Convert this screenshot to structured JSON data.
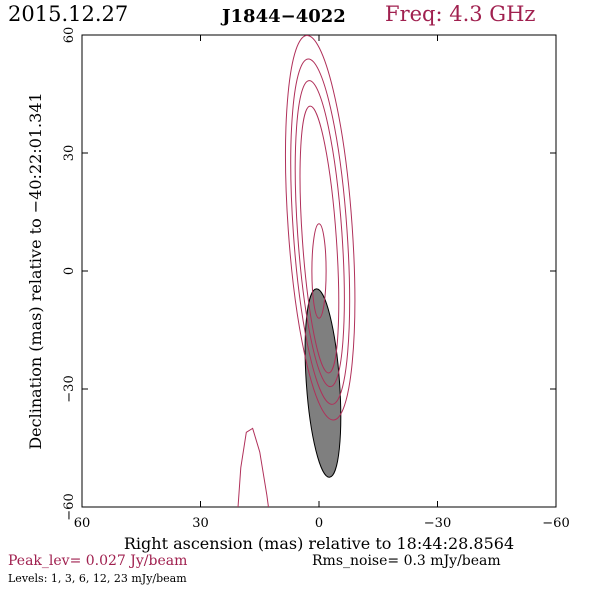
{
  "header": {
    "date": "2015.12.27",
    "source": "J1844−4022",
    "frequency": "Freq: 4.3 GHz"
  },
  "footer": {
    "peak": "Peak_lev=  0.027 Jy/beam",
    "rms": "Rms_noise=  0.3 mJy/beam",
    "levels": "Levels:   1,   3,   6,  12,  23 mJy/beam"
  },
  "colors": {
    "contour": "#b0305a",
    "beam_fill": "#7f7f7f",
    "freq_text": "#a0204f"
  },
  "chart_data": {
    "type": "contour",
    "xlabel": "Right ascension (mas) relative to 18:44:28.8564",
    "ylabel": "Declination (mas) relative to −40:22:01.341",
    "xlim": [
      60,
      -60
    ],
    "ylim": [
      -60,
      60
    ],
    "xticks": [
      60,
      30,
      0,
      -30,
      -60
    ],
    "yticks": [
      -60,
      -30,
      0,
      30,
      60
    ],
    "xtick_labels": [
      "60",
      "30",
      "0",
      "−30",
      "−60"
    ],
    "ytick_labels": [
      "−60",
      "−30",
      "0",
      "30",
      "60"
    ],
    "levels_mJy": [
      1,
      3,
      6,
      12,
      23
    ],
    "main_component": {
      "contours": [
        {
          "level": 1,
          "center": [
            -0.3,
            11.0
          ],
          "semi_major": 49.0,
          "semi_minor": 8.1,
          "pa_deg": -4
        },
        {
          "level": 3,
          "center": [
            -0.3,
            10.0
          ],
          "semi_major": 44.0,
          "semi_minor": 6.8,
          "pa_deg": -4
        },
        {
          "level": 6,
          "center": [
            -0.2,
            9.5
          ],
          "semi_major": 39.0,
          "semi_minor": 5.6,
          "pa_deg": -4
        },
        {
          "level": 12,
          "center": [
            -0.1,
            8.0
          ],
          "semi_major": 34.0,
          "semi_minor": 4.3,
          "pa_deg": -4
        },
        {
          "level": 23,
          "center": [
            0.0,
            0.0
          ],
          "semi_major": 12.0,
          "semi_minor": 1.8,
          "pa_deg": 0
        }
      ]
    },
    "secondary_component": {
      "level": 1,
      "arc_points": [
        [
          20.5,
          -60
        ],
        [
          19.8,
          -50
        ],
        [
          18.4,
          -41
        ],
        [
          16.8,
          -40
        ],
        [
          15.0,
          -46
        ],
        [
          13.2,
          -57
        ],
        [
          12.8,
          -60
        ]
      ]
    },
    "beam": {
      "center": [
        -1.0,
        -28.5
      ],
      "semi_major": 24.0,
      "semi_minor": 4.2,
      "pa_deg": -4
    }
  }
}
